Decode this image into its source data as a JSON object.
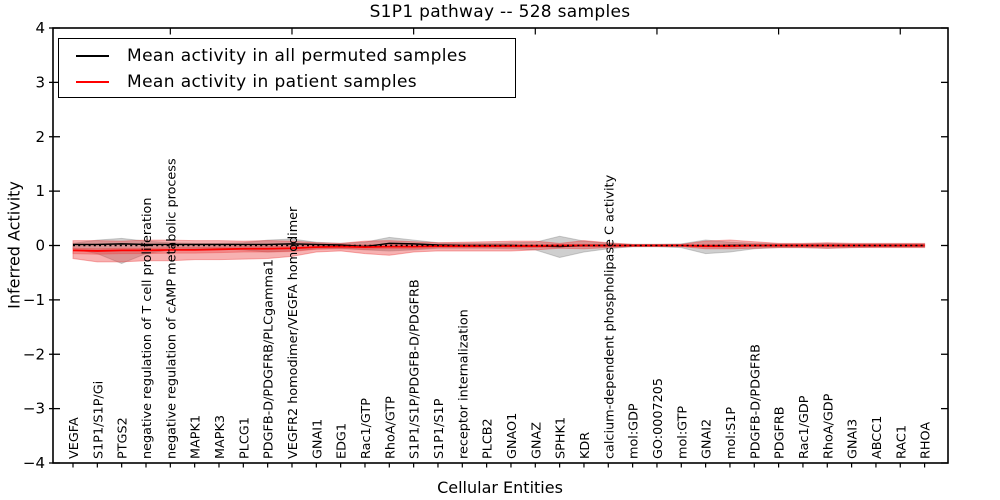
{
  "title": "S1P1 pathway -- 528 samples",
  "legend": {
    "items": [
      {
        "label": "Mean activity in all permuted samples",
        "color": "#000000"
      },
      {
        "label": "Mean activity in patient samples",
        "color": "#ff0000"
      }
    ]
  },
  "chart_data": {
    "type": "line",
    "title": "S1P1 pathway -- 528 samples",
    "xlabel": "Cellular Entities",
    "ylabel": "Inferred Activity",
    "ylim": [
      -4,
      4
    ],
    "yticks": [
      4,
      3,
      2,
      1,
      0,
      -1,
      -2,
      -3,
      -4
    ],
    "grid": false,
    "legend_position": "upper left",
    "categories": [
      "VEGFA",
      "S1P1/S1P/Gi",
      "PTGS2",
      "negative regulation of T cell proliferation",
      "negative regulation of cAMP metabolic process",
      "MAPK1",
      "MAPK3",
      "PLCG1",
      "PDGFB-D/PDGFRB/PLCgamma1",
      "VEGFR2 homodimer/VEGFA homodimer",
      "GNAI1",
      "EDG1",
      "Rac1/GTP",
      "RhoA/GTP",
      "S1P1/S1P/PDGFB-D/PDGFRB",
      "S1P1/S1P",
      "receptor internalization",
      "PLCB2",
      "GNAO1",
      "GNAZ",
      "SPHK1",
      "KDR",
      "calcium-dependent phospholipase C activity",
      "mol:GDP",
      "GO:0007205",
      "mol:GTP",
      "GNAI2",
      "mol:S1P",
      "PDGFB-D/PDGFRB",
      "PDGFRB",
      "Rac1/GDP",
      "RhoA/GDP",
      "GNAI3",
      "ABCC1",
      "RAC1",
      "RHOA"
    ],
    "series": [
      {
        "name": "Mean activity in all permuted samples",
        "color": "#000000",
        "style": "solid",
        "width": 1.4,
        "values": [
          0.02,
          0.02,
          0.03,
          0.02,
          0.02,
          0.02,
          0.02,
          0.02,
          0.02,
          0.03,
          0.02,
          0.01,
          -0.02,
          0.04,
          0.03,
          0.01,
          0,
          0,
          0,
          -0.01,
          -0.02,
          0,
          0,
          0,
          0,
          0,
          -0.01,
          0,
          0,
          0,
          0,
          0,
          0,
          0,
          0,
          0
        ]
      },
      {
        "name": "Mean activity in patient samples",
        "color": "#ff0000",
        "style": "solid",
        "width": 1.8,
        "values": [
          -0.09,
          -0.1,
          -0.09,
          -0.09,
          -0.08,
          -0.08,
          -0.07,
          -0.06,
          -0.06,
          -0.05,
          -0.03,
          -0.02,
          -0.03,
          -0.02,
          -0.02,
          -0.01,
          -0.01,
          -0.01,
          -0.01,
          -0.01,
          0,
          0,
          0,
          0,
          0,
          0,
          -0.01,
          -0.01,
          0,
          0,
          0,
          0,
          0,
          0,
          0,
          0
        ]
      },
      {
        "name": "zero reference",
        "color": "#000000",
        "style": "dotted",
        "width": 1.6,
        "values": [
          0,
          0,
          0,
          0,
          0,
          0,
          0,
          0,
          0,
          0,
          0,
          0,
          0,
          0,
          0,
          0,
          0,
          0,
          0,
          0,
          0,
          0,
          0,
          0,
          0,
          0,
          0,
          0,
          0,
          0,
          0,
          0,
          0,
          0,
          0,
          0
        ]
      }
    ],
    "bands": [
      {
        "name": "permuted samples range",
        "color": "rgba(130,130,130,0.38)",
        "high": [
          0.04,
          0.1,
          0.13,
          0.08,
          0.05,
          0.04,
          0.04,
          0.05,
          0.1,
          0.12,
          0.06,
          0.04,
          0.06,
          0.15,
          0.1,
          0.05,
          0.04,
          0.04,
          0.05,
          0.06,
          0.17,
          0.08,
          0.04,
          0.02,
          0.02,
          0.03,
          0.1,
          0.06,
          0.04,
          0.03,
          0.03,
          0.04,
          0.03,
          0.03,
          0.03,
          0.03
        ],
        "low": [
          -0.06,
          -0.15,
          -0.33,
          -0.15,
          -0.08,
          -0.06,
          -0.06,
          -0.08,
          -0.12,
          -0.1,
          -0.06,
          -0.05,
          -0.08,
          -0.1,
          -0.08,
          -0.05,
          -0.05,
          -0.05,
          -0.06,
          -0.08,
          -0.22,
          -0.12,
          -0.06,
          -0.02,
          -0.02,
          -0.04,
          -0.15,
          -0.12,
          -0.06,
          -0.04,
          -0.04,
          -0.05,
          -0.04,
          -0.03,
          -0.03,
          -0.03
        ]
      },
      {
        "name": "patient samples range",
        "color": "rgba(235,60,60,0.40)",
        "high": [
          0.09,
          0.09,
          0.08,
          0.1,
          0.1,
          0.09,
          0.09,
          0.08,
          0.09,
          0.08,
          0.05,
          0.04,
          0.08,
          0.09,
          0.07,
          0.05,
          0.06,
          0.07,
          0.08,
          0.08,
          0.04,
          0.09,
          0.05,
          0.02,
          0.02,
          0.02,
          0.08,
          0.1,
          0.07,
          0.04,
          0.04,
          0.05,
          0.04,
          0.04,
          0.04,
          0.04
        ],
        "low": [
          -0.24,
          -0.3,
          -0.3,
          -0.28,
          -0.28,
          -0.26,
          -0.26,
          -0.25,
          -0.24,
          -0.2,
          -0.12,
          -0.1,
          -0.15,
          -0.18,
          -0.12,
          -0.1,
          -0.1,
          -0.1,
          -0.1,
          -0.08,
          -0.05,
          -0.06,
          -0.04,
          -0.02,
          -0.02,
          -0.02,
          -0.06,
          -0.06,
          -0.05,
          -0.04,
          -0.04,
          -0.05,
          -0.04,
          -0.04,
          -0.04,
          -0.04
        ]
      },
      {
        "name": "patient samples inner range",
        "color": "rgba(235,60,60,0.35)",
        "high": [
          -0.05,
          -0.06,
          -0.05,
          -0.05,
          -0.04,
          -0.04,
          -0.03,
          -0.02,
          -0.02,
          -0.01,
          0.01,
          0.02,
          0.01,
          0.02,
          0.02,
          0.02,
          0.02,
          0.02,
          0.02,
          0.02,
          0.02,
          0.02,
          0.02,
          0.01,
          0.01,
          0.01,
          0.02,
          0.02,
          0.02,
          0.02,
          0.02,
          0.02,
          0.02,
          0.02,
          0.02,
          0.02
        ],
        "low": [
          -0.15,
          -0.16,
          -0.15,
          -0.15,
          -0.14,
          -0.14,
          -0.13,
          -0.12,
          -0.12,
          -0.11,
          -0.07,
          -0.06,
          -0.07,
          -0.06,
          -0.06,
          -0.04,
          -0.04,
          -0.04,
          -0.04,
          -0.04,
          -0.02,
          -0.02,
          -0.02,
          -0.01,
          -0.01,
          -0.01,
          -0.03,
          -0.03,
          -0.02,
          -0.02,
          -0.02,
          -0.02,
          -0.02,
          -0.02,
          -0.02,
          -0.02
        ]
      }
    ]
  }
}
